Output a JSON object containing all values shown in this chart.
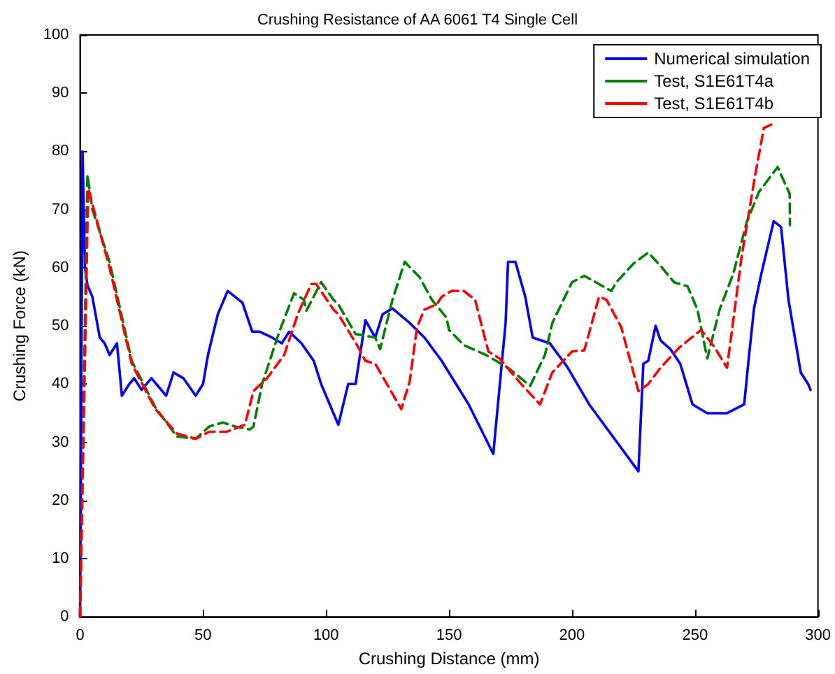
{
  "chart_data": {
    "type": "line",
    "title": "Crushing Resistance of AA 6061 T4 Single Cell",
    "xlabel": "Crushing Distance (mm)",
    "ylabel": "Crushing Force (kN)",
    "xlim": [
      0,
      300
    ],
    "xticks": [
      0,
      50,
      100,
      150,
      200,
      250,
      300
    ],
    "ylim": [
      0,
      100
    ],
    "yticks": [
      0,
      10,
      20,
      30,
      40,
      50,
      60,
      70,
      80,
      90,
      100
    ],
    "grid": false,
    "legend": "top right",
    "marker": "none",
    "series": [
      {
        "name": "Numerical simulation",
        "color": "#0000ff",
        "line_style": "solid",
        "x": [
          0,
          1,
          2,
          3,
          5,
          8,
          10,
          12,
          15,
          17,
          20,
          22,
          25,
          29,
          35,
          38,
          42,
          47,
          50,
          52,
          56,
          60,
          63,
          66,
          70,
          73,
          78,
          82,
          85,
          90,
          95,
          98,
          103,
          105,
          109,
          112,
          116,
          120,
          123,
          127,
          134,
          140,
          147,
          158,
          168,
          173,
          174,
          177,
          181,
          184,
          191,
          198,
          207,
          227,
          229,
          231,
          233,
          234,
          236,
          240,
          244,
          249,
          255,
          260,
          263,
          270,
          272,
          274,
          277,
          282,
          285,
          288,
          293,
          296,
          297
        ],
        "values": [
          0,
          80,
          60,
          57,
          55,
          48,
          47,
          45,
          47,
          38,
          40,
          41,
          39,
          41,
          38,
          42,
          41,
          38,
          40,
          45,
          52,
          56,
          55,
          54,
          49,
          49,
          48,
          47,
          49,
          47,
          44,
          40,
          35,
          33,
          40,
          40,
          51,
          48,
          52,
          53,
          50.5,
          48,
          44,
          36.5,
          28,
          50.5,
          61,
          61,
          55,
          48,
          47,
          43,
          36.5,
          25,
          43.5,
          44,
          48,
          50,
          47.5,
          46,
          43.5,
          36.5,
          35,
          35,
          35,
          36.5,
          45,
          53,
          59,
          68,
          67,
          54.5,
          42,
          40,
          39
        ]
      },
      {
        "name": "Test, S1E61T4a",
        "color": "#008000",
        "line_style": "dashed",
        "x": [
          0,
          3,
          5,
          12,
          21,
          30.6,
          39.3,
          47,
          52.5,
          58,
          63,
          69,
          70.5,
          74,
          81,
          87,
          91,
          92,
          98,
          103,
          105,
          112,
          120,
          122,
          127,
          132,
          138,
          143,
          149,
          150,
          156,
          165,
          174,
          183,
          189,
          192,
          200,
          205,
          216,
          218,
          225,
          231,
          236,
          241.5,
          247,
          251,
          255,
          260,
          265.6,
          271,
          276,
          283.6,
          288.5,
          288.6
        ],
        "values": [
          0,
          76,
          70,
          61,
          44,
          36,
          31,
          30.6,
          32.7,
          33.4,
          32.7,
          32.2,
          32.7,
          40,
          49,
          55.6,
          54.5,
          52.6,
          57.5,
          54.5,
          53.7,
          48.6,
          48,
          46,
          54.5,
          61,
          58.4,
          54.5,
          51.4,
          49.3,
          46.7,
          45,
          42.8,
          39.7,
          45,
          50.5,
          57.5,
          58.6,
          56,
          57.5,
          60.7,
          62.6,
          60.3,
          57.5,
          56.8,
          52.8,
          44.4,
          52.8,
          59,
          67.8,
          73,
          77.3,
          72.7,
          67.3
        ]
      },
      {
        "name": "Test, S1E61T4b",
        "color": "#ff0000",
        "line_style": "dashed",
        "x": [
          0,
          3.3,
          12,
          21,
          30.6,
          39.3,
          47,
          52.5,
          59.6,
          67,
          70.5,
          76,
          83,
          88.5,
          94,
          96,
          103,
          105,
          112.6,
          116,
          120,
          130.6,
          134,
          137,
          140,
          145,
          147,
          151,
          156,
          160.6,
          166,
          170.5,
          180,
          187,
          192,
          200,
          205,
          211,
          214,
          220,
          227,
          231,
          236,
          243.7,
          252.5,
          258,
          263,
          264.5,
          269,
          274.3,
          278,
          281
        ],
        "values": [
          0,
          73.6,
          60,
          43.5,
          35.7,
          31.5,
          30.6,
          31.8,
          31.8,
          33,
          38.8,
          41,
          45,
          52,
          57.2,
          57.2,
          52.8,
          52,
          46.7,
          44,
          43.5,
          35.7,
          40.4,
          49.8,
          52.8,
          53.7,
          55,
          56,
          56,
          54.5,
          45.6,
          44.4,
          39.7,
          36.5,
          42,
          45.6,
          45.8,
          55,
          54.5,
          49.8,
          38.8,
          40,
          42.8,
          46.3,
          49.3,
          46.3,
          42.8,
          47.5,
          62,
          75.5,
          84,
          84.6
        ]
      }
    ]
  }
}
